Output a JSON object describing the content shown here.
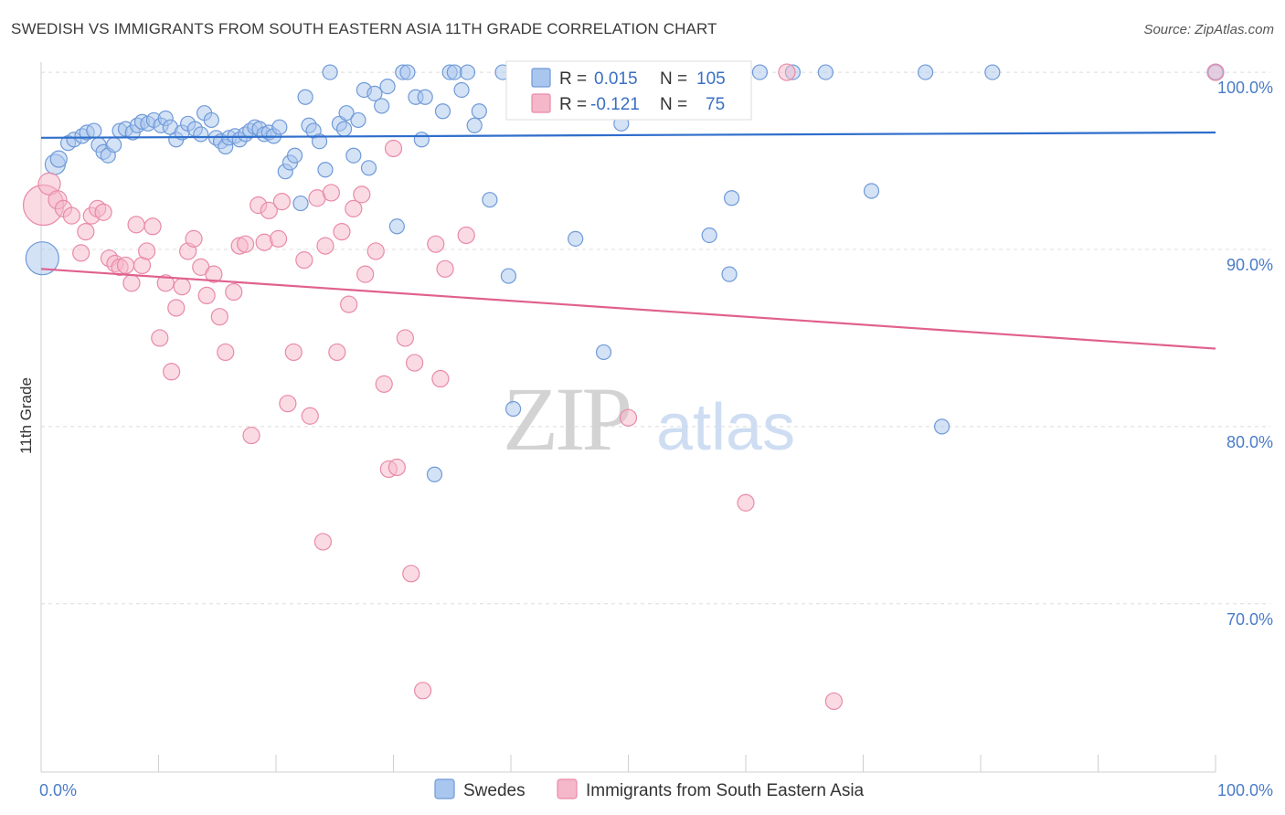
{
  "title": "SWEDISH VS IMMIGRANTS FROM SOUTH EASTERN ASIA 11TH GRADE CORRELATION CHART",
  "source": "Source: ZipAtlas.com",
  "watermark": {
    "zip": "ZIP",
    "atlas": "atlas"
  },
  "colors": {
    "blue_fill": "#a9c6ee",
    "blue_stroke": "#6f9ad8",
    "blue_line": "#2f6ecb",
    "pink_fill": "#f5b7ca",
    "pink_stroke": "#e98aa8",
    "pink_line": "#e0608e",
    "grid": "#dcdcdc",
    "tick_text": "#4a7cc7"
  },
  "legend": {
    "rows": [
      {
        "r_label": "R =",
        "r_value": "0.015",
        "n_label": "N =",
        "n_value": "105"
      },
      {
        "r_label": "R =",
        "r_value": "-0.121",
        "n_label": "N =",
        "n_value": "75"
      }
    ]
  },
  "bottom_legend": [
    "Swedes",
    "Immigrants from South Eastern Asia"
  ],
  "chart_data": {
    "type": "scatter",
    "title": "SWEDISH VS IMMIGRANTS FROM SOUTH EASTERN ASIA 11TH GRADE CORRELATION CHART",
    "ylabel": "11th Grade",
    "xlabel": "",
    "xlim": [
      0,
      100
    ],
    "ylim": [
      60.5,
      101.5
    ],
    "x_tick_labels": [
      "0.0%",
      "100.0%"
    ],
    "y_ticks": [
      100,
      90,
      80,
      70
    ],
    "y_tick_labels": [
      "100.0%",
      "90.0%",
      "80.0%",
      "70.0%"
    ],
    "grid": true,
    "legend_position": "top-center",
    "series": [
      {
        "name": "Swedes",
        "trend": {
          "x": [
            0,
            100
          ],
          "y": [
            96.3,
            96.6
          ]
        },
        "points": [
          [
            0.1,
            89.5,
            18
          ],
          [
            1.2,
            94.8,
            11
          ],
          [
            1.5,
            95.1,
            9
          ],
          [
            2.3,
            96.0,
            8
          ],
          [
            2.8,
            96.2,
            8
          ],
          [
            3.5,
            96.4,
            8
          ],
          [
            3.9,
            96.6,
            8
          ],
          [
            4.5,
            96.7,
            8
          ],
          [
            4.9,
            95.9,
            8
          ],
          [
            5.3,
            95.5,
            8
          ],
          [
            5.7,
            95.3,
            8
          ],
          [
            6.2,
            95.9,
            8
          ],
          [
            6.7,
            96.7,
            8
          ],
          [
            7.2,
            96.8,
            8
          ],
          [
            7.8,
            96.6,
            8
          ],
          [
            8.2,
            97.0,
            8
          ],
          [
            8.6,
            97.2,
            8
          ],
          [
            9.1,
            97.1,
            8
          ],
          [
            9.6,
            97.3,
            8
          ],
          [
            10.2,
            97.0,
            8
          ],
          [
            10.6,
            97.4,
            8
          ],
          [
            11.0,
            96.9,
            8
          ],
          [
            11.5,
            96.2,
            8
          ],
          [
            12.0,
            96.6,
            8
          ],
          [
            12.5,
            97.1,
            8
          ],
          [
            13.1,
            96.8,
            8
          ],
          [
            13.6,
            96.5,
            8
          ],
          [
            13.9,
            97.7,
            8
          ],
          [
            14.5,
            97.3,
            8
          ],
          [
            14.9,
            96.3,
            8
          ],
          [
            15.3,
            96.1,
            8
          ],
          [
            15.7,
            95.8,
            8
          ],
          [
            16.0,
            96.3,
            8
          ],
          [
            16.5,
            96.4,
            8
          ],
          [
            16.9,
            96.2,
            8
          ],
          [
            17.4,
            96.5,
            8
          ],
          [
            17.8,
            96.7,
            8
          ],
          [
            18.2,
            96.9,
            8
          ],
          [
            18.6,
            96.8,
            8
          ],
          [
            19.0,
            96.5,
            8
          ],
          [
            19.4,
            96.6,
            8
          ],
          [
            19.8,
            96.4,
            8
          ],
          [
            20.3,
            96.9,
            8
          ],
          [
            20.8,
            94.4,
            8
          ],
          [
            21.2,
            94.9,
            8
          ],
          [
            21.6,
            95.3,
            8
          ],
          [
            22.1,
            92.6,
            8
          ],
          [
            22.5,
            98.6,
            8
          ],
          [
            22.8,
            97.0,
            8
          ],
          [
            23.2,
            96.7,
            8
          ],
          [
            23.7,
            96.1,
            8
          ],
          [
            24.2,
            94.5,
            8
          ],
          [
            24.6,
            100.0,
            8
          ],
          [
            25.4,
            97.1,
            8
          ],
          [
            25.8,
            96.8,
            8
          ],
          [
            26.0,
            97.7,
            8
          ],
          [
            26.6,
            95.3,
            8
          ],
          [
            27.0,
            97.3,
            8
          ],
          [
            27.5,
            99.0,
            8
          ],
          [
            27.9,
            94.6,
            8
          ],
          [
            28.4,
            98.8,
            8
          ],
          [
            29.0,
            98.1,
            8
          ],
          [
            29.5,
            99.2,
            8
          ],
          [
            30.3,
            91.3,
            8
          ],
          [
            30.8,
            100.0,
            8
          ],
          [
            31.2,
            100.0,
            8
          ],
          [
            31.9,
            98.6,
            8
          ],
          [
            32.4,
            96.2,
            8
          ],
          [
            32.7,
            98.6,
            8
          ],
          [
            33.5,
            77.3,
            8
          ],
          [
            34.2,
            97.8,
            8
          ],
          [
            34.8,
            100.0,
            8
          ],
          [
            35.2,
            100.0,
            8
          ],
          [
            35.8,
            99.0,
            8
          ],
          [
            36.3,
            100.0,
            8
          ],
          [
            36.9,
            97.0,
            8
          ],
          [
            37.3,
            97.8,
            8
          ],
          [
            38.2,
            92.8,
            8
          ],
          [
            39.3,
            100.0,
            8
          ],
          [
            39.8,
            88.5,
            8
          ],
          [
            40.8,
            99.8,
            8
          ],
          [
            41.4,
            98.5,
            8
          ],
          [
            42.0,
            100.0,
            8
          ],
          [
            40.2,
            81.0,
            8
          ],
          [
            44.3,
            100.0,
            8
          ],
          [
            45.5,
            90.6,
            8
          ],
          [
            47.6,
            100.0,
            8
          ],
          [
            47.9,
            84.2,
            8
          ],
          [
            49.4,
            97.1,
            8
          ],
          [
            50.2,
            100.0,
            8
          ],
          [
            53.2,
            100.0,
            8
          ],
          [
            56.6,
            100.0,
            8
          ],
          [
            56.9,
            90.8,
            8
          ],
          [
            58.0,
            100.0,
            8
          ],
          [
            58.6,
            88.6,
            8
          ],
          [
            58.8,
            92.9,
            8
          ],
          [
            61.2,
            100.0,
            8
          ],
          [
            64.0,
            100.0,
            8
          ],
          [
            66.8,
            100.0,
            8
          ],
          [
            70.7,
            93.3,
            8
          ],
          [
            75.3,
            100.0,
            8
          ],
          [
            76.7,
            80.0,
            8
          ],
          [
            81.0,
            100.0,
            8
          ],
          [
            100.0,
            100.0,
            8
          ],
          [
            43.8,
            100.0,
            8
          ]
        ]
      },
      {
        "name": "Immigrants from South Eastern Asia",
        "trend": {
          "x": [
            0,
            100
          ],
          "y": [
            88.9,
            84.4
          ]
        },
        "points": [
          [
            0.2,
            92.5,
            22
          ],
          [
            0.7,
            93.7,
            12
          ],
          [
            1.4,
            92.8,
            10
          ],
          [
            1.9,
            92.3,
            9
          ],
          [
            2.6,
            91.9,
            9
          ],
          [
            3.4,
            89.8,
            9
          ],
          [
            3.8,
            91.0,
            9
          ],
          [
            4.3,
            91.9,
            9
          ],
          [
            4.8,
            92.3,
            9
          ],
          [
            5.3,
            92.1,
            9
          ],
          [
            5.8,
            89.5,
            9
          ],
          [
            6.3,
            89.2,
            9
          ],
          [
            6.7,
            89.0,
            9
          ],
          [
            7.2,
            89.1,
            9
          ],
          [
            7.7,
            88.1,
            9
          ],
          [
            8.1,
            91.4,
            9
          ],
          [
            8.6,
            89.1,
            9
          ],
          [
            9.0,
            89.9,
            9
          ],
          [
            9.5,
            91.3,
            9
          ],
          [
            10.1,
            85.0,
            9
          ],
          [
            10.6,
            88.1,
            9
          ],
          [
            11.1,
            83.1,
            9
          ],
          [
            11.5,
            86.7,
            9
          ],
          [
            12.0,
            87.9,
            9
          ],
          [
            12.5,
            89.9,
            9
          ],
          [
            13.0,
            90.6,
            9
          ],
          [
            13.6,
            89.0,
            9
          ],
          [
            14.1,
            87.4,
            9
          ],
          [
            14.7,
            88.6,
            9
          ],
          [
            15.2,
            86.2,
            9
          ],
          [
            15.7,
            84.2,
            9
          ],
          [
            16.4,
            87.6,
            9
          ],
          [
            16.9,
            90.2,
            9
          ],
          [
            17.4,
            90.3,
            9
          ],
          [
            17.9,
            79.5,
            9
          ],
          [
            18.5,
            92.5,
            9
          ],
          [
            19.0,
            90.4,
            9
          ],
          [
            19.4,
            92.2,
            9
          ],
          [
            20.2,
            90.6,
            9
          ],
          [
            20.5,
            92.7,
            9
          ],
          [
            21.0,
            81.3,
            9
          ],
          [
            21.5,
            84.2,
            9
          ],
          [
            22.4,
            89.4,
            9
          ],
          [
            22.9,
            80.6,
            9
          ],
          [
            23.5,
            92.9,
            9
          ],
          [
            24.2,
            90.2,
            9
          ],
          [
            24.7,
            93.2,
            9
          ],
          [
            25.2,
            84.2,
            9
          ],
          [
            25.6,
            91.0,
            9
          ],
          [
            26.2,
            86.9,
            9
          ],
          [
            26.6,
            92.3,
            9
          ],
          [
            27.3,
            93.1,
            9
          ],
          [
            27.6,
            88.6,
            9
          ],
          [
            28.5,
            89.9,
            9
          ],
          [
            29.2,
            82.4,
            9
          ],
          [
            29.6,
            77.6,
            9
          ],
          [
            30.3,
            77.7,
            9
          ],
          [
            31.0,
            85.0,
            9
          ],
          [
            31.8,
            83.6,
            9
          ],
          [
            32.5,
            65.1,
            9
          ],
          [
            33.6,
            90.3,
            9
          ],
          [
            34.0,
            82.7,
            9
          ],
          [
            34.4,
            88.9,
            9
          ],
          [
            36.2,
            90.8,
            9
          ],
          [
            24.0,
            73.5,
            9
          ],
          [
            31.5,
            71.7,
            9
          ],
          [
            30.0,
            95.7,
            9
          ],
          [
            41.0,
            98.5,
            9
          ],
          [
            43.5,
            100.0,
            9
          ],
          [
            45.0,
            97.8,
            9
          ],
          [
            50.0,
            80.5,
            9
          ],
          [
            60.0,
            75.7,
            9
          ],
          [
            63.5,
            100.0,
            9
          ],
          [
            67.5,
            64.5,
            9
          ],
          [
            100.0,
            100.0,
            9
          ]
        ]
      }
    ]
  }
}
